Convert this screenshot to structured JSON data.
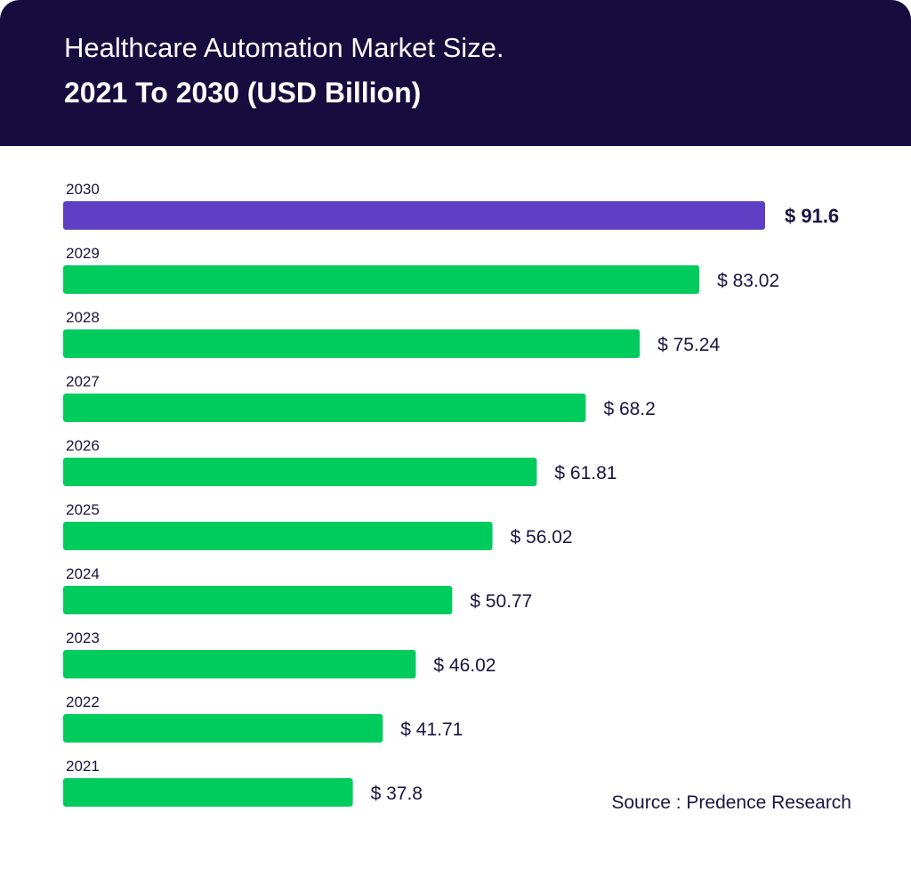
{
  "header": {
    "title": "Healthcare Automation Market Size.",
    "subtitle": "2021 To 2030 (USD Billion)"
  },
  "source": "Source : Predence Research",
  "colors": {
    "header_bg": "#170c3e",
    "highlight_bar": "#5e3ec2",
    "bar": "#00cc5e",
    "text": "#1b1442"
  },
  "chart_data": {
    "type": "bar",
    "orientation": "horizontal",
    "title": "Healthcare Automation Market Size.",
    "subtitle": "2021 To 2030 (USD Billion)",
    "categories": [
      "2030",
      "2029",
      "2028",
      "2027",
      "2026",
      "2025",
      "2024",
      "2023",
      "2022",
      "2021"
    ],
    "values": [
      91.6,
      83.02,
      75.24,
      68.2,
      61.81,
      56.02,
      50.77,
      46.02,
      41.71,
      37.8
    ],
    "value_labels": [
      "$ 91.6",
      "$ 83.02",
      "$ 75.24",
      "$ 68.2",
      "$ 61.81",
      "$ 56.02",
      "$ 50.77",
      "$ 46.02",
      "$ 41.71",
      "$ 37.8"
    ],
    "highlight_category": "2030",
    "grid": false,
    "legend": "none"
  }
}
